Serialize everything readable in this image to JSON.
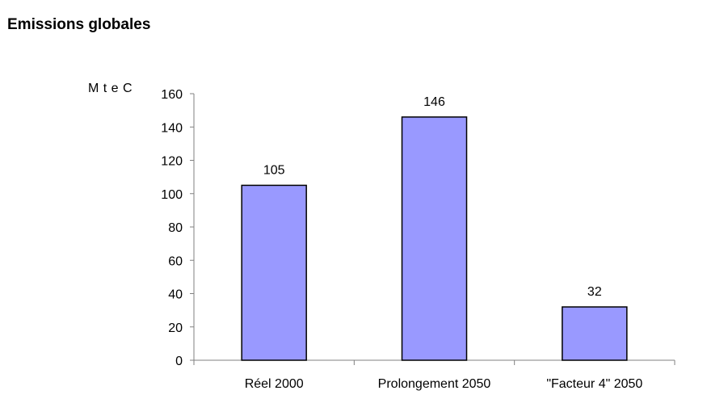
{
  "chart_data": {
    "type": "bar",
    "title": "Emissions globales",
    "ylabel": "M t e C",
    "xlabel": "",
    "categories": [
      "Réel 2000",
      "Prolongement 2050",
      "\"Facteur 4\" 2050"
    ],
    "values": [
      105,
      146,
      32
    ],
    "data_labels": [
      "105",
      "146",
      "32"
    ],
    "ylim": [
      0,
      160
    ],
    "yticks": [
      0,
      20,
      40,
      60,
      80,
      100,
      120,
      140,
      160
    ],
    "grid": false,
    "legend": "none",
    "bar_color": "#9999FF",
    "bar_stroke": "#000000"
  }
}
